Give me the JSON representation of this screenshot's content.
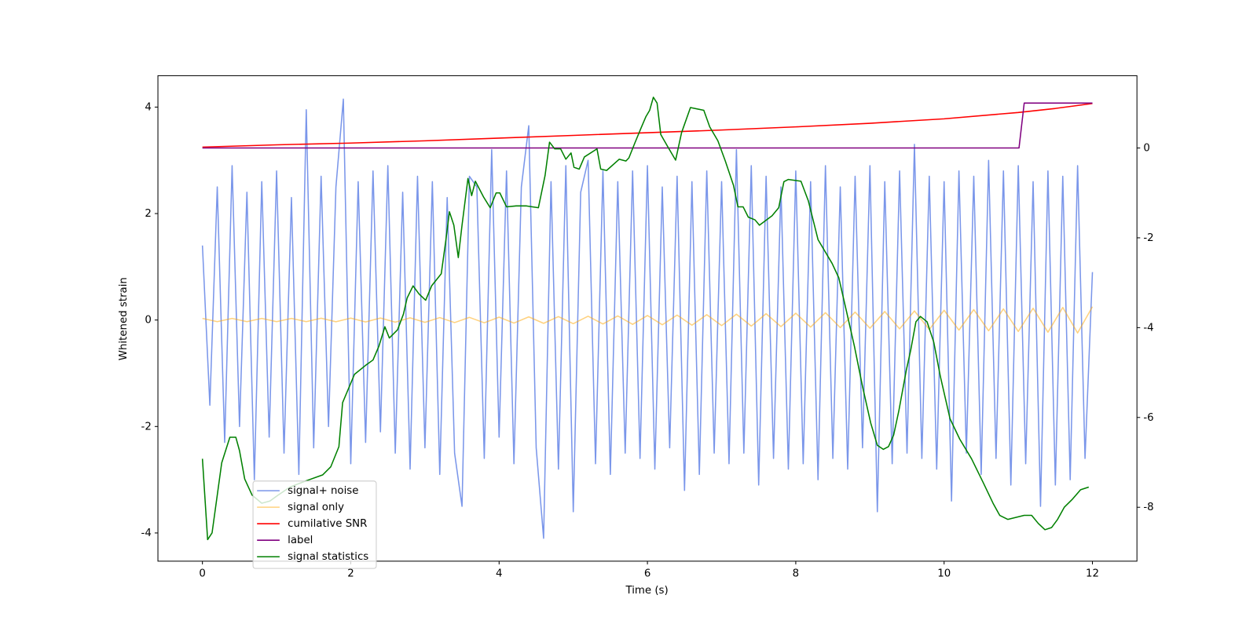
{
  "chart_data": {
    "type": "line",
    "xlabel": "Time (s)",
    "ylabel": "Whitened strain",
    "xlim": [
      -0.6,
      12.6
    ],
    "xticks": [
      0,
      2,
      4,
      6,
      8,
      10,
      12
    ],
    "ylim": [
      -4.53,
      4.59
    ],
    "yticks": [
      -4,
      -2,
      0,
      2,
      4
    ],
    "y2lim": [
      -9.2,
      1.61
    ],
    "y2ticks": [
      -8,
      -6,
      -4,
      -2,
      0
    ],
    "legend": "lower left",
    "grid": false,
    "series": [
      {
        "name": "signal+ noise",
        "color": "#4169e1",
        "alpha": 0.7,
        "axis": "y",
        "x": [
          0,
          0.1,
          0.2,
          0.3,
          0.4,
          0.5,
          0.6,
          0.7,
          0.8,
          0.9,
          1,
          1.1,
          1.2,
          1.3,
          1.4,
          1.5,
          1.6,
          1.7,
          1.8,
          1.9,
          2,
          2.1,
          2.2,
          2.3,
          2.4,
          2.5,
          2.6,
          2.7,
          2.8,
          2.9,
          3,
          3.1,
          3.2,
          3.3,
          3.4,
          3.5,
          3.6,
          3.7,
          3.8,
          3.9,
          4,
          4.1,
          4.2,
          4.3,
          4.4,
          4.5,
          4.6,
          4.7,
          4.8,
          4.9,
          5,
          5.1,
          5.2,
          5.3,
          5.4,
          5.5,
          5.6,
          5.7,
          5.8,
          5.9,
          6,
          6.1,
          6.2,
          6.3,
          6.4,
          6.5,
          6.6,
          6.7,
          6.8,
          6.9,
          7,
          7.1,
          7.2,
          7.3,
          7.4,
          7.5,
          7.6,
          7.7,
          7.8,
          7.9,
          8,
          8.1,
          8.2,
          8.3,
          8.4,
          8.5,
          8.6,
          8.7,
          8.8,
          8.9,
          9,
          9.1,
          9.2,
          9.3,
          9.4,
          9.5,
          9.6,
          9.7,
          9.8,
          9.9,
          10,
          10.1,
          10.2,
          10.3,
          10.4,
          10.5,
          10.6,
          10.7,
          10.8,
          10.9,
          11,
          11.1,
          11.2,
          11.3,
          11.4,
          11.5,
          11.6,
          11.7,
          11.8,
          11.9,
          12
        ],
        "values": [
          1.4,
          -1.6,
          2.5,
          -2.3,
          2.9,
          -2.0,
          2.4,
          -3.0,
          2.6,
          -2.2,
          2.8,
          -2.5,
          2.3,
          -2.9,
          3.95,
          -2.4,
          2.7,
          -2.0,
          2.5,
          4.15,
          -2.7,
          2.6,
          -2.3,
          2.8,
          -2.1,
          2.9,
          -2.5,
          2.4,
          -2.8,
          2.7,
          -2.4,
          2.6,
          -2.9,
          2.3,
          -2.5,
          -3.5,
          2.7,
          2.5,
          -2.6,
          3.2,
          -2.2,
          2.8,
          -2.7,
          2.5,
          3.65,
          -2.4,
          -4.1,
          2.6,
          -2.8,
          2.9,
          -3.6,
          2.4,
          3.0,
          -2.7,
          2.8,
          -2.9,
          2.6,
          -2.5,
          2.8,
          -2.6,
          2.9,
          -2.8,
          2.5,
          -2.4,
          2.7,
          -3.2,
          2.6,
          -2.9,
          2.8,
          -2.5,
          2.6,
          -2.7,
          3.2,
          -2.5,
          2.9,
          -3.1,
          2.7,
          -2.6,
          2.5,
          -2.8,
          2.8,
          -2.7,
          2.6,
          -3.0,
          2.9,
          -2.6,
          2.5,
          -2.8,
          2.7,
          -2.4,
          2.9,
          -3.6,
          2.6,
          -2.7,
          2.8,
          -2.5,
          3.3,
          -2.6,
          2.7,
          -2.8,
          2.6,
          -3.4,
          2.8,
          -2.5,
          2.7,
          -2.9,
          3.0,
          -2.6,
          2.8,
          -3.1,
          2.9,
          -2.7,
          2.6,
          -3.5,
          2.8,
          -3.1,
          2.7,
          -3.0,
          2.9,
          -2.6,
          0.9
        ]
      },
      {
        "name": "signal only",
        "color": "#ffa500",
        "alpha": 0.5,
        "axis": "y",
        "x": [
          0,
          0.2,
          0.4,
          0.6,
          0.8,
          1,
          1.2,
          1.4,
          1.6,
          1.8,
          2,
          2.2,
          2.4,
          2.6,
          2.8,
          3,
          3.2,
          3.4,
          3.6,
          3.8,
          4,
          4.2,
          4.4,
          4.6,
          4.8,
          5,
          5.2,
          5.4,
          5.6,
          5.8,
          6,
          6.2,
          6.4,
          6.6,
          6.8,
          7,
          7.2,
          7.4,
          7.6,
          7.8,
          8,
          8.2,
          8.4,
          8.6,
          8.8,
          9,
          9.2,
          9.4,
          9.6,
          9.8,
          10,
          10.2,
          10.4,
          10.6,
          10.8,
          11,
          11.2,
          11.4,
          11.6,
          11.8,
          12
        ],
        "values": [
          0.03,
          -0.03,
          0.03,
          -0.03,
          0.03,
          -0.03,
          0.03,
          -0.03,
          0.033,
          -0.033,
          0.036,
          -0.036,
          0.037,
          -0.04,
          0.042,
          -0.044,
          0.046,
          -0.048,
          0.05,
          -0.052,
          0.054,
          -0.057,
          0.06,
          -0.062,
          0.065,
          -0.068,
          0.071,
          -0.074,
          0.078,
          -0.081,
          0.085,
          -0.089,
          0.093,
          -0.097,
          0.101,
          -0.105,
          0.11,
          -0.114,
          0.119,
          -0.123,
          0.128,
          -0.133,
          0.138,
          -0.143,
          0.149,
          -0.154,
          0.16,
          -0.166,
          0.171,
          -0.177,
          0.183,
          -0.189,
          0.196,
          -0.202,
          0.209,
          -0.215,
          0.222,
          -0.229,
          0.236,
          -0.243,
          0.25
        ]
      },
      {
        "name": "cumilative SNR",
        "color": "#ff0000",
        "axis": "y2",
        "x": [
          0,
          1,
          2,
          3,
          4,
          5,
          6,
          7,
          8,
          9,
          10,
          11,
          11.5,
          12
        ],
        "values": [
          0.02,
          0.07,
          0.11,
          0.16,
          0.22,
          0.28,
          0.34,
          0.4,
          0.47,
          0.55,
          0.65,
          0.79,
          0.88,
          0.99
        ]
      },
      {
        "name": "label",
        "color": "#800080",
        "axis": "y2",
        "x": [
          0,
          11.01,
          11.08,
          12
        ],
        "values": [
          0,
          0,
          1,
          1
        ]
      },
      {
        "name": "signal statistics",
        "color": "#008000",
        "axis": "y2",
        "x": [
          0,
          0.07,
          0.13,
          0.26,
          0.37,
          0.45,
          0.5,
          0.57,
          0.67,
          0.8,
          0.91,
          1.02,
          1.18,
          1.4,
          1.62,
          1.73,
          1.84,
          1.89,
          2.05,
          2.2,
          2.3,
          2.38,
          2.46,
          2.52,
          2.63,
          2.71,
          2.76,
          2.84,
          2.92,
          3.01,
          3.09,
          3.22,
          3.28,
          3.33,
          3.39,
          3.45,
          3.5,
          3.58,
          3.63,
          3.68,
          3.79,
          3.88,
          3.96,
          4.01,
          4.1,
          4.23,
          4.37,
          4.53,
          4.62,
          4.68,
          4.75,
          4.83,
          4.9,
          4.97,
          5.01,
          5.08,
          5.15,
          5.32,
          5.37,
          5.45,
          5.62,
          5.71,
          5.75,
          5.83,
          5.91,
          5.98,
          6.03,
          6.08,
          6.13,
          6.18,
          6.27,
          6.38,
          6.46,
          6.58,
          6.76,
          6.84,
          6.95,
          7.05,
          7.16,
          7.22,
          7.29,
          7.36,
          7.45,
          7.51,
          7.68,
          7.77,
          7.84,
          7.9,
          8.07,
          8.17,
          8.3,
          8.49,
          8.58,
          8.68,
          8.79,
          8.9,
          9.01,
          9.1,
          9.18,
          9.25,
          9.32,
          9.39,
          9.49,
          9.55,
          9.62,
          9.68,
          9.77,
          9.86,
          9.95,
          10.08,
          10.21,
          10.37,
          10.53,
          10.66,
          10.75,
          10.86,
          11.08,
          11.18,
          11.27,
          11.36,
          11.45,
          11.53,
          11.62,
          11.73,
          11.84,
          11.95
        ],
        "values": [
          -6.92,
          -8.72,
          -8.57,
          -7.01,
          -6.44,
          -6.44,
          -6.74,
          -7.37,
          -7.73,
          -7.91,
          -7.86,
          -7.73,
          -7.55,
          -7.41,
          -7.28,
          -7.1,
          -6.65,
          -5.67,
          -5.04,
          -4.84,
          -4.72,
          -4.41,
          -3.98,
          -4.23,
          -4.05,
          -3.7,
          -3.34,
          -3.07,
          -3.25,
          -3.39,
          -3.07,
          -2.8,
          -2.08,
          -1.42,
          -1.72,
          -2.44,
          -1.72,
          -0.68,
          -1.06,
          -0.74,
          -1.09,
          -1.33,
          -1.0,
          -1.0,
          -1.31,
          -1.29,
          -1.29,
          -1.33,
          -0.61,
          0.13,
          -0.02,
          -0.02,
          -0.25,
          -0.11,
          -0.43,
          -0.47,
          -0.2,
          -0.02,
          -0.47,
          -0.5,
          -0.25,
          -0.29,
          -0.22,
          0.11,
          0.43,
          0.7,
          0.84,
          1.13,
          1.0,
          0.3,
          0.04,
          -0.27,
          0.34,
          0.9,
          0.84,
          0.47,
          0.16,
          -0.29,
          -0.83,
          -1.31,
          -1.31,
          -1.54,
          -1.6,
          -1.72,
          -1.51,
          -1.33,
          -0.75,
          -0.7,
          -0.74,
          -1.18,
          -2.04,
          -2.57,
          -2.89,
          -3.61,
          -4.41,
          -5.31,
          -6.12,
          -6.62,
          -6.71,
          -6.65,
          -6.39,
          -5.85,
          -4.95,
          -4.5,
          -3.87,
          -3.75,
          -3.87,
          -4.32,
          -5.09,
          -6.03,
          -6.48,
          -6.92,
          -7.46,
          -7.91,
          -8.18,
          -8.27,
          -8.18,
          -8.18,
          -8.36,
          -8.5,
          -8.45,
          -8.27,
          -8.0,
          -7.82,
          -7.61,
          -7.55
        ]
      }
    ]
  }
}
